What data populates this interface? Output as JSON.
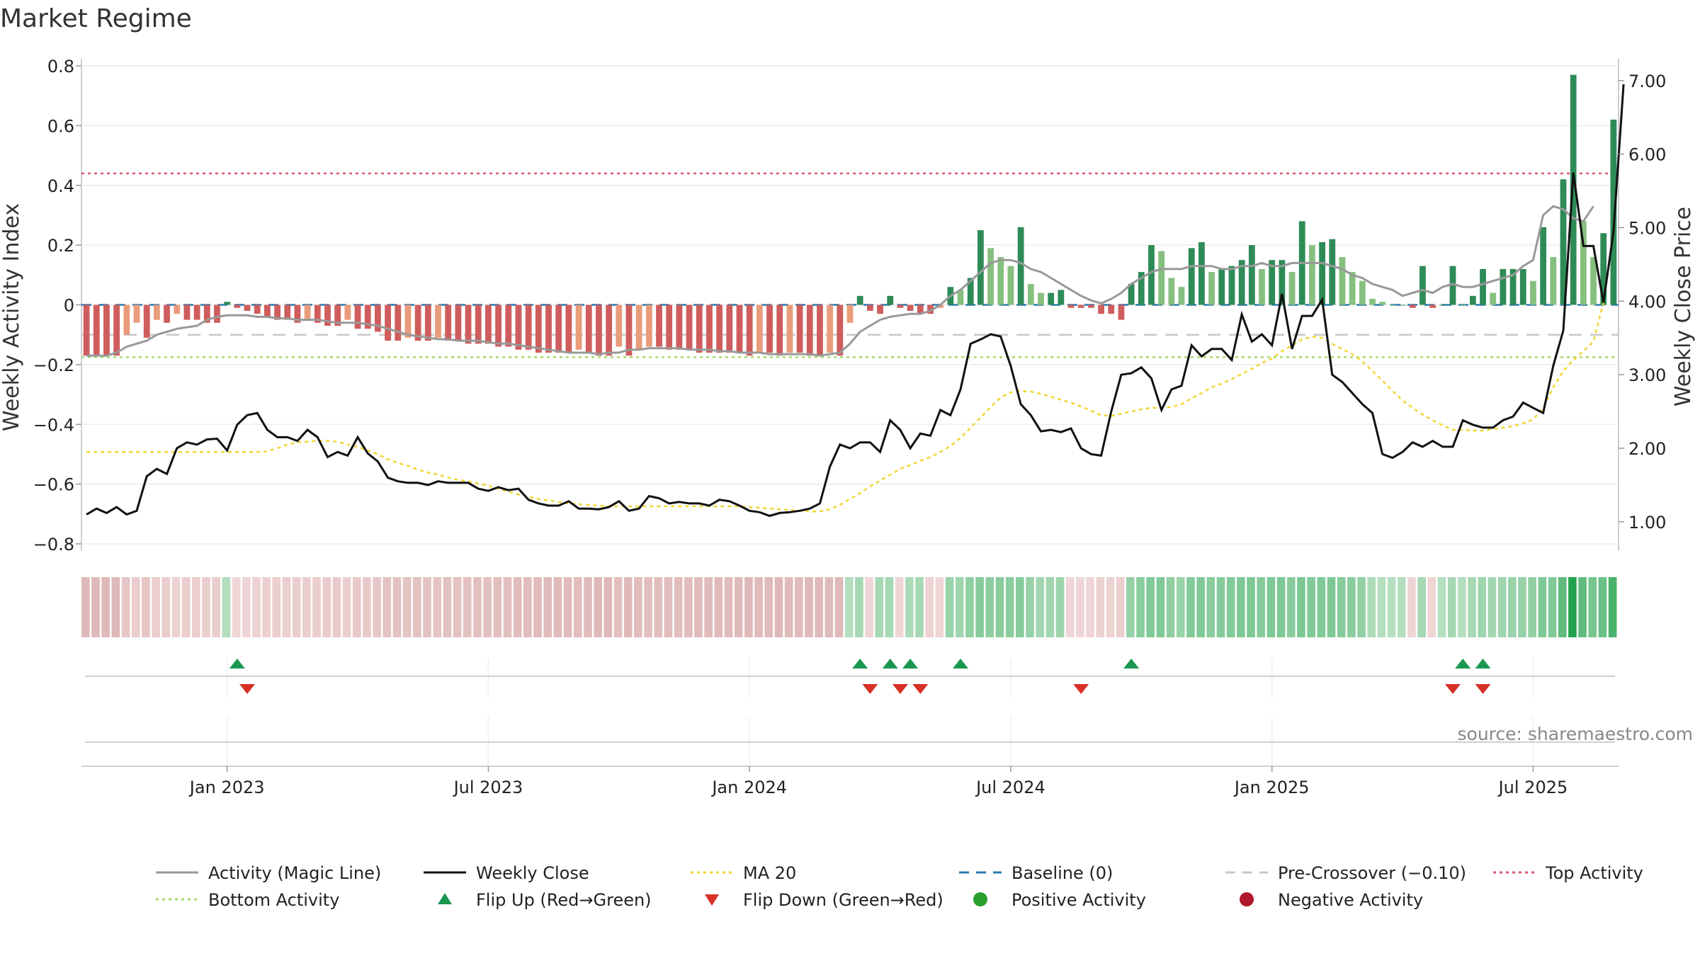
{
  "chart_data": {
    "type": "bar",
    "title": "Market Regime",
    "ylabel_left": "Weekly Activity Index",
    "ylabel_right": "Weekly Close Price",
    "ylim_left": [
      -0.8,
      0.8
    ],
    "ylim_right": [
      0.7,
      7.2
    ],
    "left_ticks": [
      "0.8",
      "0.6",
      "0.4",
      "0.2",
      "0",
      "−0.2",
      "−0.4",
      "−0.6",
      "−0.8"
    ],
    "right_ticks": [
      "7.00",
      "6.00",
      "5.00",
      "4.00",
      "3.00",
      "2.00",
      "1.00"
    ],
    "x_tick_labels": [
      "Jan 2023",
      "Jul 2023",
      "Jan 2024",
      "Jul 2024",
      "Jan 2025",
      "Jul 2025"
    ],
    "x_tick_weeks": [
      14,
      40,
      66,
      92,
      118,
      144
    ],
    "grid": true,
    "reference_lines": {
      "top_activity": 0.44,
      "bottom_activity": -0.175,
      "pre_crossover": -0.1,
      "baseline": 0
    },
    "activity": [
      -0.17,
      -0.17,
      -0.17,
      -0.17,
      -0.1,
      -0.06,
      -0.11,
      -0.05,
      -0.06,
      -0.03,
      -0.05,
      -0.05,
      -0.06,
      -0.06,
      0.01,
      -0.01,
      -0.02,
      -0.03,
      -0.04,
      -0.05,
      -0.05,
      -0.06,
      -0.05,
      -0.06,
      -0.07,
      -0.07,
      -0.05,
      -0.08,
      -0.08,
      -0.09,
      -0.12,
      -0.12,
      -0.11,
      -0.12,
      -0.12,
      -0.11,
      -0.12,
      -0.12,
      -0.13,
      -0.13,
      -0.13,
      -0.14,
      -0.14,
      -0.15,
      -0.15,
      -0.16,
      -0.16,
      -0.16,
      -0.16,
      -0.15,
      -0.16,
      -0.17,
      -0.17,
      -0.14,
      -0.17,
      -0.15,
      -0.14,
      -0.14,
      -0.15,
      -0.15,
      -0.15,
      -0.16,
      -0.16,
      -0.16,
      -0.16,
      -0.16,
      -0.17,
      -0.16,
      -0.16,
      -0.17,
      -0.16,
      -0.16,
      -0.17,
      -0.17,
      -0.16,
      -0.17,
      -0.06,
      0.03,
      -0.02,
      -0.03,
      0.03,
      -0.01,
      -0.02,
      -0.03,
      -0.03,
      -0.01,
      0.06,
      0.05,
      0.09,
      0.25,
      0.19,
      0.16,
      0.13,
      0.26,
      0.07,
      0.04,
      0.04,
      0.05,
      -0.01,
      -0.01,
      -0.01,
      -0.03,
      -0.03,
      -0.05,
      0.07,
      0.11,
      0.2,
      0.18,
      0.09,
      0.06,
      0.19,
      0.21,
      0.11,
      0.12,
      0.13,
      0.15,
      0.2,
      0.12,
      0.15,
      0.15,
      0.11,
      0.28,
      0.2,
      0.21,
      0.22,
      0.16,
      0.11,
      0.08,
      0.02,
      0.01,
      0.0,
      0.0,
      -0.01,
      0.13,
      -0.01,
      0.0,
      0.13,
      0.0,
      0.03,
      0.12,
      0.04,
      0.12,
      0.12,
      0.12,
      0.08,
      0.26,
      0.16,
      0.42,
      0.77,
      0.28,
      0.16,
      0.24,
      0.62
    ],
    "magic_line": [
      -0.17,
      -0.17,
      -0.17,
      -0.16,
      -0.14,
      -0.13,
      -0.12,
      -0.1,
      -0.09,
      -0.08,
      -0.075,
      -0.07,
      -0.05,
      -0.04,
      -0.035,
      -0.035,
      -0.035,
      -0.04,
      -0.04,
      -0.045,
      -0.045,
      -0.05,
      -0.05,
      -0.05,
      -0.055,
      -0.06,
      -0.06,
      -0.06,
      -0.065,
      -0.07,
      -0.08,
      -0.09,
      -0.1,
      -0.105,
      -0.11,
      -0.115,
      -0.115,
      -0.12,
      -0.12,
      -0.12,
      -0.125,
      -0.13,
      -0.13,
      -0.135,
      -0.14,
      -0.145,
      -0.15,
      -0.155,
      -0.16,
      -0.16,
      -0.16,
      -0.165,
      -0.16,
      -0.16,
      -0.15,
      -0.15,
      -0.145,
      -0.145,
      -0.145,
      -0.145,
      -0.15,
      -0.15,
      -0.15,
      -0.155,
      -0.155,
      -0.16,
      -0.16,
      -0.16,
      -0.165,
      -0.165,
      -0.165,
      -0.165,
      -0.165,
      -0.17,
      -0.165,
      -0.16,
      -0.13,
      -0.09,
      -0.07,
      -0.05,
      -0.04,
      -0.035,
      -0.03,
      -0.03,
      -0.02,
      0.0,
      0.03,
      0.05,
      0.08,
      0.11,
      0.14,
      0.15,
      0.15,
      0.14,
      0.12,
      0.11,
      0.09,
      0.07,
      0.05,
      0.03,
      0.015,
      0.005,
      0.02,
      0.04,
      0.07,
      0.09,
      0.11,
      0.12,
      0.12,
      0.12,
      0.13,
      0.13,
      0.13,
      0.12,
      0.12,
      0.13,
      0.13,
      0.14,
      0.13,
      0.13,
      0.14,
      0.14,
      0.14,
      0.14,
      0.13,
      0.12,
      0.1,
      0.09,
      0.07,
      0.06,
      0.05,
      0.03,
      0.04,
      0.05,
      0.04,
      0.06,
      0.07,
      0.06,
      0.06,
      0.07,
      0.08,
      0.09,
      0.1,
      0.13,
      0.15,
      0.3,
      0.33,
      0.32,
      0.29,
      0.28,
      0.33
    ],
    "weekly_close": [
      1.1,
      1.18,
      1.12,
      1.2,
      1.1,
      1.15,
      1.62,
      1.72,
      1.65,
      2.0,
      2.08,
      2.05,
      2.12,
      2.13,
      1.97,
      2.32,
      2.45,
      2.48,
      2.25,
      2.15,
      2.15,
      2.1,
      2.25,
      2.15,
      1.88,
      1.95,
      1.9,
      2.15,
      1.93,
      1.82,
      1.6,
      1.55,
      1.53,
      1.53,
      1.5,
      1.55,
      1.53,
      1.53,
      1.53,
      1.45,
      1.42,
      1.47,
      1.43,
      1.45,
      1.3,
      1.25,
      1.22,
      1.22,
      1.28,
      1.18,
      1.18,
      1.17,
      1.2,
      1.28,
      1.15,
      1.18,
      1.35,
      1.32,
      1.25,
      1.27,
      1.25,
      1.25,
      1.22,
      1.3,
      1.28,
      1.22,
      1.15,
      1.13,
      1.08,
      1.12,
      1.13,
      1.15,
      1.18,
      1.25,
      1.75,
      2.05,
      2.0,
      2.08,
      2.08,
      1.95,
      2.38,
      2.25,
      2.0,
      2.2,
      2.17,
      2.52,
      2.45,
      2.8,
      3.42,
      3.48,
      3.55,
      3.52,
      3.12,
      2.6,
      2.45,
      2.23,
      2.25,
      2.22,
      2.27,
      2.0,
      1.92,
      1.9,
      2.5,
      3.0,
      3.02,
      3.1,
      2.95,
      2.52,
      2.8,
      2.85,
      3.4,
      3.25,
      3.35,
      3.35,
      3.2,
      3.82,
      3.45,
      3.55,
      3.4,
      4.1,
      3.35,
      3.8,
      3.8,
      4.02,
      3.0,
      2.9,
      2.75,
      2.6,
      2.48,
      1.92,
      1.87,
      1.95,
      2.08,
      2.02,
      2.1,
      2.02,
      2.02,
      2.38,
      2.32,
      2.28,
      2.28,
      2.38,
      2.43,
      2.62,
      2.55,
      2.48,
      3.12,
      3.6,
      5.75,
      4.75,
      4.75,
      3.98,
      4.95,
      6.95
    ],
    "ma20": [
      1.95,
      1.95,
      1.95,
      1.95,
      1.95,
      1.95,
      1.95,
      1.95,
      1.95,
      1.95,
      1.95,
      1.95,
      1.95,
      1.95,
      1.95,
      1.95,
      1.95,
      1.95,
      1.96,
      2.0,
      2.05,
      2.08,
      2.09,
      2.1,
      2.1,
      2.09,
      2.05,
      2.02,
      1.97,
      1.92,
      1.85,
      1.8,
      1.76,
      1.71,
      1.67,
      1.64,
      1.6,
      1.57,
      1.55,
      1.52,
      1.49,
      1.45,
      1.41,
      1.37,
      1.34,
      1.31,
      1.29,
      1.27,
      1.25,
      1.24,
      1.23,
      1.22,
      1.21,
      1.21,
      1.21,
      1.21,
      1.21,
      1.21,
      1.21,
      1.21,
      1.21,
      1.21,
      1.21,
      1.21,
      1.21,
      1.21,
      1.2,
      1.19,
      1.18,
      1.17,
      1.16,
      1.15,
      1.14,
      1.14,
      1.17,
      1.23,
      1.31,
      1.39,
      1.48,
      1.56,
      1.64,
      1.72,
      1.77,
      1.83,
      1.88,
      1.95,
      2.03,
      2.14,
      2.28,
      2.42,
      2.56,
      2.69,
      2.76,
      2.78,
      2.77,
      2.74,
      2.7,
      2.66,
      2.62,
      2.57,
      2.51,
      2.45,
      2.44,
      2.47,
      2.5,
      2.53,
      2.55,
      2.55,
      2.56,
      2.6,
      2.68,
      2.75,
      2.83,
      2.88,
      2.94,
      3.01,
      3.08,
      3.16,
      3.22,
      3.32,
      3.4,
      3.48,
      3.52,
      3.5,
      3.42,
      3.35,
      3.28,
      3.18,
      3.05,
      2.92,
      2.78,
      2.65,
      2.55,
      2.46,
      2.38,
      2.31,
      2.25,
      2.25,
      2.24,
      2.24,
      2.26,
      2.28,
      2.3,
      2.34,
      2.39,
      2.55,
      2.83,
      3.05,
      3.2,
      3.32,
      3.45,
      3.98
    ],
    "heat_strip": [
      -0.17,
      -0.17,
      -0.17,
      -0.17,
      -0.1,
      -0.06,
      -0.11,
      -0.05,
      -0.06,
      -0.03,
      -0.05,
      -0.05,
      -0.06,
      -0.06,
      0.01,
      -0.01,
      -0.02,
      -0.03,
      -0.04,
      -0.05,
      -0.05,
      -0.06,
      -0.05,
      -0.06,
      -0.07,
      -0.07,
      -0.05,
      -0.08,
      -0.08,
      -0.09,
      -0.12,
      -0.12,
      -0.11,
      -0.12,
      -0.12,
      -0.11,
      -0.12,
      -0.12,
      -0.13,
      -0.13,
      -0.13,
      -0.14,
      -0.14,
      -0.15,
      -0.15,
      -0.16,
      -0.16,
      -0.16,
      -0.16,
      -0.15,
      -0.16,
      -0.17,
      -0.17,
      -0.14,
      -0.17,
      -0.15,
      -0.14,
      -0.14,
      -0.15,
      -0.15,
      -0.15,
      -0.16,
      -0.16,
      -0.16,
      -0.16,
      -0.16,
      -0.17,
      -0.16,
      -0.16,
      -0.17,
      -0.16,
      -0.16,
      -0.17,
      -0.17,
      -0.16,
      -0.17,
      0.01,
      0.03,
      -0.02,
      0.03,
      0.03,
      -0.01,
      0.02,
      0.03,
      -0.03,
      -0.01,
      0.06,
      0.05,
      0.09,
      0.12,
      0.1,
      0.11,
      0.1,
      0.12,
      0.07,
      0.04,
      0.04,
      0.05,
      -0.01,
      -0.01,
      -0.01,
      -0.03,
      -0.03,
      -0.05,
      0.07,
      0.11,
      0.14,
      0.14,
      0.09,
      0.06,
      0.13,
      0.14,
      0.11,
      0.12,
      0.13,
      0.15,
      0.15,
      0.12,
      0.15,
      0.15,
      0.11,
      0.16,
      0.14,
      0.14,
      0.15,
      0.12,
      0.11,
      0.08,
      0.02,
      0.01,
      0.01,
      0.01,
      -0.01,
      0.03,
      -0.01,
      0.01,
      0.03,
      0.01,
      0.03,
      0.05,
      0.04,
      0.05,
      0.06,
      0.07,
      0.08,
      0.15,
      0.14,
      0.3,
      0.77,
      0.3,
      0.18,
      0.24,
      0.45
    ],
    "flip_up_weeks": [
      15,
      77,
      80,
      82,
      87,
      104,
      137,
      139
    ],
    "flip_down_weeks": [
      16,
      78,
      81,
      83,
      99,
      136,
      139
    ],
    "legend": [
      {
        "label": "Activity (Magic Line)",
        "symbol": "line",
        "color": "#999999"
      },
      {
        "label": "Weekly Close",
        "symbol": "line",
        "color": "#111111"
      },
      {
        "label": "MA 20",
        "symbol": "dotted",
        "color": "#f2d530"
      },
      {
        "label": "Baseline (0)",
        "symbol": "dashed",
        "color": "#2a7ab0"
      },
      {
        "label": "Pre-Crossover (−0.10)",
        "symbol": "dashed",
        "color": "#c8c8c8"
      },
      {
        "label": "Top Activity",
        "symbol": "dotted",
        "color": "#e0566e"
      },
      {
        "label": "Bottom Activity",
        "symbol": "dotted",
        "color": "#a6d96a"
      },
      {
        "label": "Flip Up (Red→Green)",
        "symbol": "triangle-up",
        "color": "#1a9850"
      },
      {
        "label": "Flip Down (Green→Red)",
        "symbol": "triangle-down",
        "color": "#d73027"
      },
      {
        "label": "Positive Activity",
        "symbol": "circle",
        "color": "#2ca02c"
      },
      {
        "label": "Negative Activity",
        "symbol": "circle",
        "color": "#b2182b"
      }
    ],
    "source": "source: sharemaestro.com"
  }
}
